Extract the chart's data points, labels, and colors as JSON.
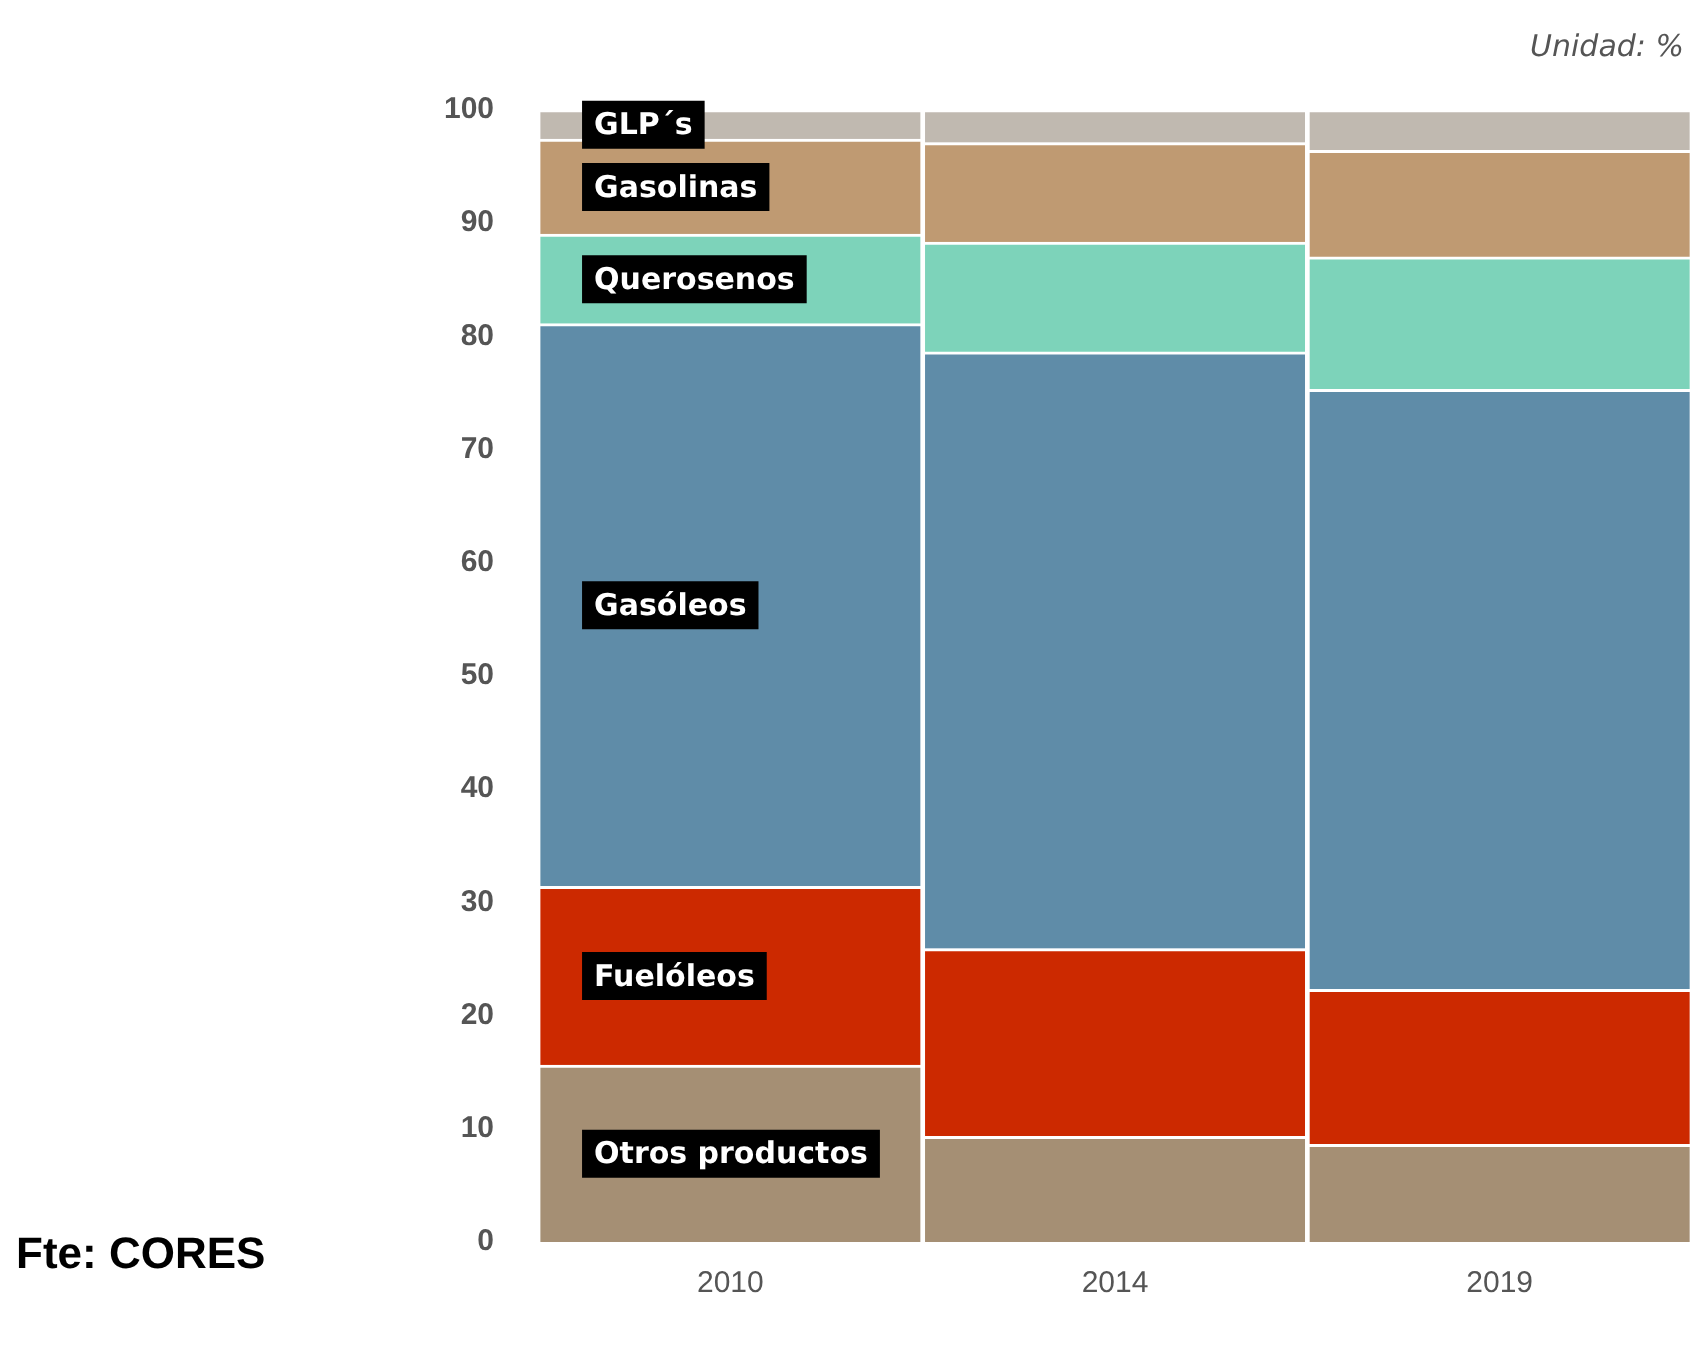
{
  "chart_data": {
    "type": "bar",
    "stacked": true,
    "categories": [
      "2010",
      "2014",
      "2019"
    ],
    "series": [
      {
        "name": "Otros productos",
        "color": "#a58f74",
        "values": [
          15.6,
          9.3,
          8.6
        ]
      },
      {
        "name": "Fuelóleos",
        "color": "#cc2900",
        "values": [
          15.8,
          16.6,
          13.7
        ]
      },
      {
        "name": "Gasóleos",
        "color": "#5f8ca8",
        "values": [
          49.7,
          52.7,
          53.0
        ]
      },
      {
        "name": "Querosenos",
        "color": "#7dd3ba",
        "values": [
          7.9,
          9.7,
          11.7
        ]
      },
      {
        "name": "Gasolinas",
        "color": "#bf9a72",
        "values": [
          8.4,
          8.8,
          9.4
        ]
      },
      {
        "name": "GLP´s",
        "color": "#c0b9b0",
        "values": [
          2.6,
          2.9,
          3.6
        ]
      }
    ],
    "ylim": [
      0,
      100
    ],
    "yticks": [
      0,
      10,
      20,
      30,
      40,
      50,
      60,
      70,
      80,
      90,
      100
    ],
    "grid": false,
    "legend": false,
    "annotations": [
      "Unidad: %",
      "Fte: CORES"
    ]
  }
}
